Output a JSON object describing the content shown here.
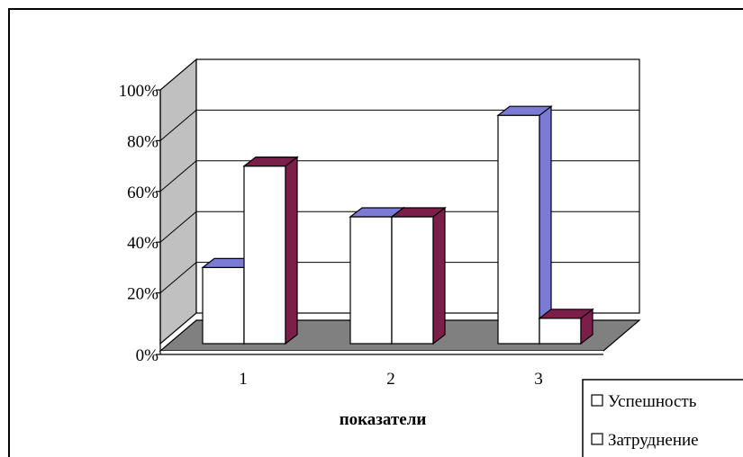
{
  "chart_data": {
    "type": "bar",
    "categories": [
      "1",
      "2",
      "3"
    ],
    "series": [
      {
        "name": "Успешность",
        "values": [
          30,
          50,
          90
        ],
        "color": "#7b7bd6"
      },
      {
        "name": "Затруднение",
        "values": [
          70,
          50,
          10
        ],
        "color": "#7b1f4a"
      }
    ],
    "y_ticks": [
      "0%",
      "20%",
      "40%",
      "60%",
      "80%",
      "100%"
    ],
    "xlabel": "показатели",
    "ylabel": "",
    "ylim": [
      0,
      100
    ],
    "grid": true,
    "legend_position": "bottom-right",
    "style": "3d-clustered-column",
    "colors": {
      "wall": "#c0c0c0",
      "floor": "#808080",
      "front_face": "#ffffff"
    }
  }
}
